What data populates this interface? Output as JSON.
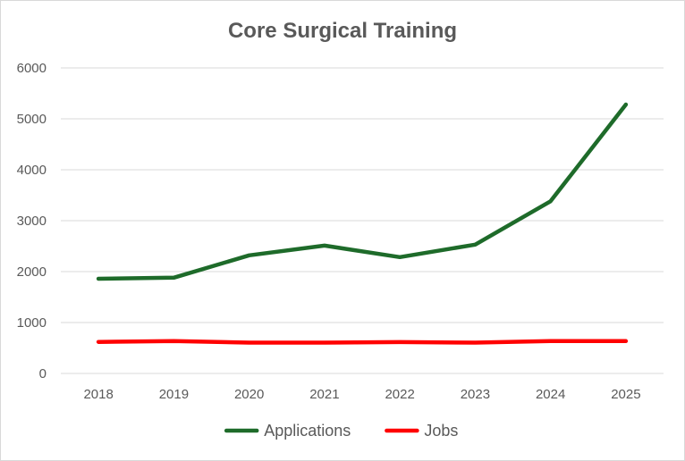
{
  "chart_data": {
    "type": "line",
    "title": "Core Surgical Training",
    "xlabel": "",
    "ylabel": "",
    "categories": [
      "2018",
      "2019",
      "2020",
      "2021",
      "2022",
      "2023",
      "2024",
      "2025"
    ],
    "ylim": [
      0,
      6000
    ],
    "yticks": [
      "0",
      "1000",
      "2000",
      "3000",
      "4000",
      "5000",
      "6000"
    ],
    "grid": true,
    "legend_position": "bottom",
    "series": [
      {
        "name": "Applications",
        "color": "#1e6b2a",
        "values": [
          1860,
          1880,
          2320,
          2510,
          2285,
          2530,
          3380,
          5280
        ]
      },
      {
        "name": "Jobs",
        "color": "#ff0000",
        "values": [
          620,
          635,
          605,
          605,
          615,
          605,
          635,
          635
        ]
      }
    ]
  }
}
